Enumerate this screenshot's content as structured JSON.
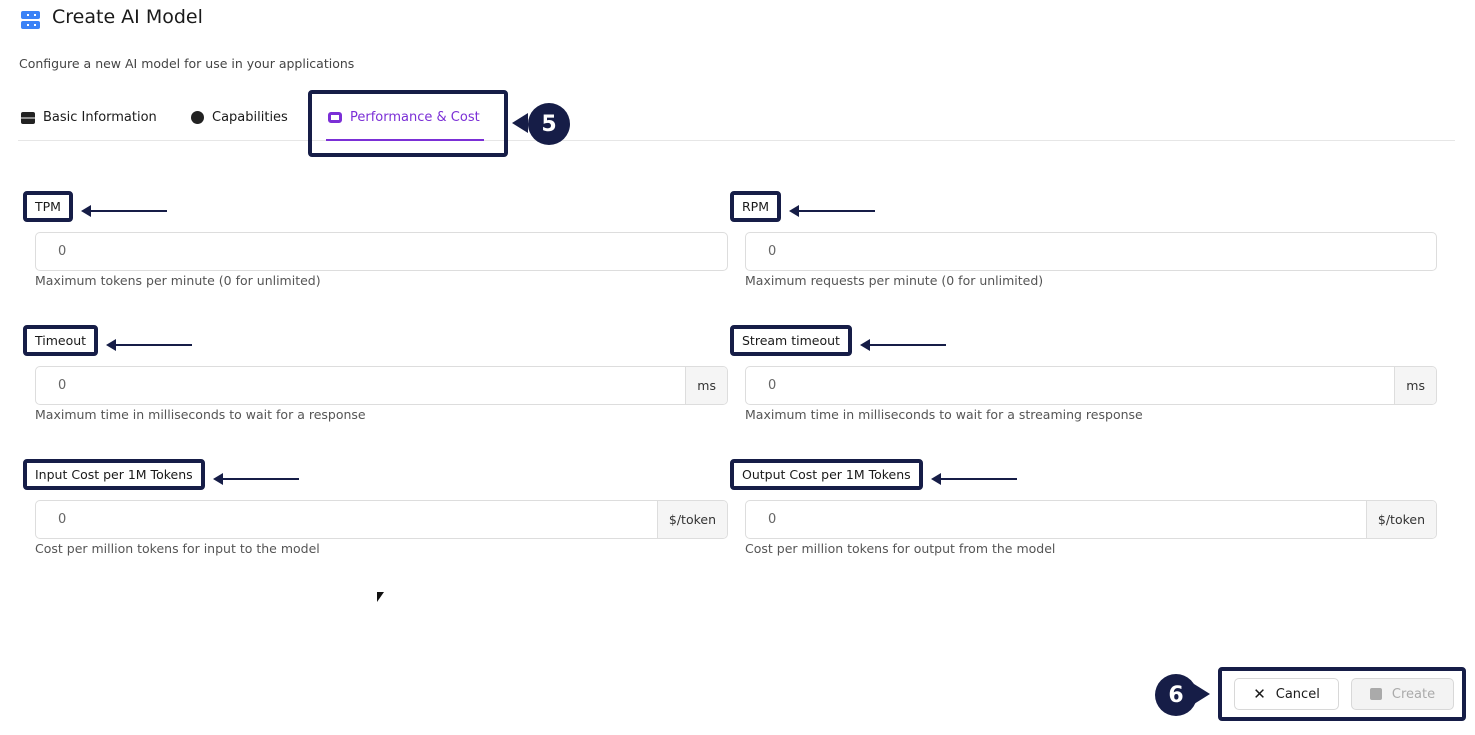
{
  "header": {
    "title": "Create AI Model",
    "subtitle": "Configure a new AI model for use in your applications",
    "icon": "server-icon"
  },
  "tabs": [
    {
      "label": "Basic Information",
      "icon": "server-icon"
    },
    {
      "label": "Capabilities",
      "icon": "palette-icon"
    },
    {
      "label": "Performance & Cost",
      "icon": "camera-icon",
      "active": true
    }
  ],
  "accent": "#7b2fd6",
  "annotations": {
    "tab_step": "5",
    "footer_step": "6"
  },
  "fields": [
    {
      "label": "TPM",
      "value": "0",
      "unit": "",
      "help": "Maximum tokens per minute (0 for unlimited)"
    },
    {
      "label": "RPM",
      "value": "0",
      "unit": "",
      "help": "Maximum requests per minute (0 for unlimited)"
    },
    {
      "label": "Timeout",
      "value": "0",
      "unit": "ms",
      "help": "Maximum time in milliseconds to wait for a response"
    },
    {
      "label": "Stream timeout",
      "value": "0",
      "unit": "ms",
      "help": "Maximum time in milliseconds to wait for a streaming response"
    },
    {
      "label": "Input Cost per 1M Tokens",
      "value": "0",
      "unit": "$/token",
      "help": "Cost per million tokens for input to the model"
    },
    {
      "label": "Output Cost per 1M Tokens",
      "value": "0",
      "unit": "$/token",
      "help": "Cost per million tokens for output from the model"
    }
  ],
  "footer": {
    "cancel": "Cancel",
    "create": "Create"
  }
}
